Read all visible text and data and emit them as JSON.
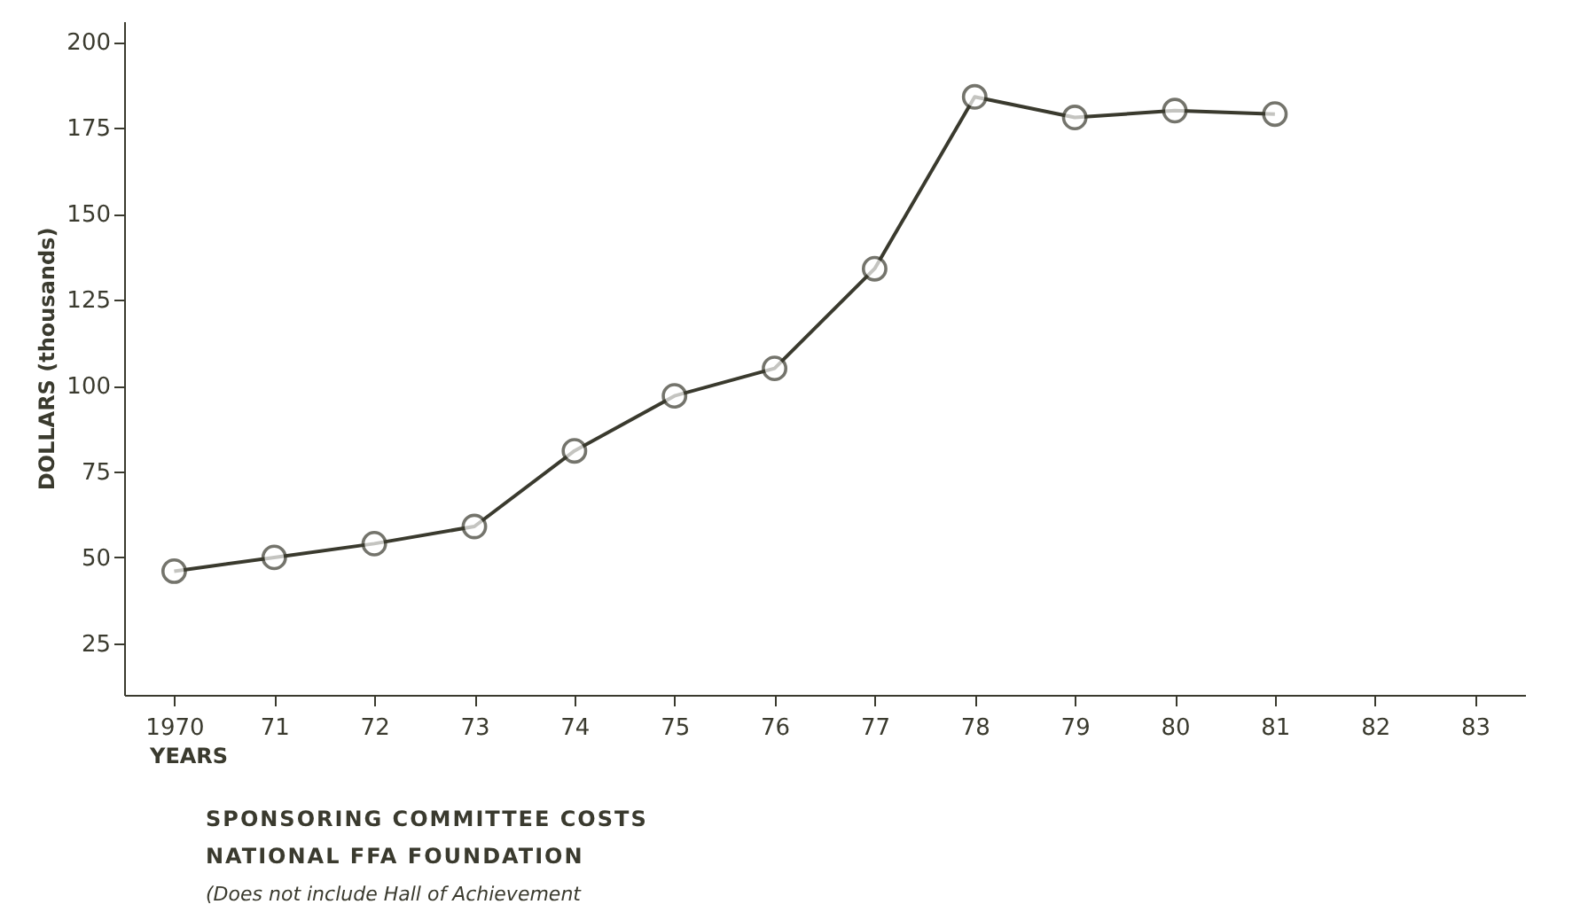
{
  "chart_data": {
    "type": "line",
    "xlabel": "YEARS",
    "ylabel": "DOLLARS (thousands)",
    "annotations": [
      "SPONSORING COMMITTEE COSTS",
      "NATIONAL FFA FOUNDATION",
      "(Does not include Hall of Achievement"
    ],
    "categories": [
      "1970",
      "71",
      "72",
      "73",
      "74",
      "75",
      "76",
      "77",
      "78",
      "79",
      "80",
      "81",
      "82",
      "83"
    ],
    "series": [
      {
        "color": "#3a3a2e",
        "values": [
          46,
          50,
          54,
          59,
          81,
          97,
          105,
          134,
          184,
          178,
          180,
          179,
          null,
          null
        ]
      }
    ],
    "ylim": [
      10,
      206
    ],
    "yticks": [
      25,
      50,
      75,
      100,
      125,
      150,
      175,
      200
    ],
    "grid": false,
    "marker": "circle",
    "line_style": "solid",
    "legend": false
  }
}
